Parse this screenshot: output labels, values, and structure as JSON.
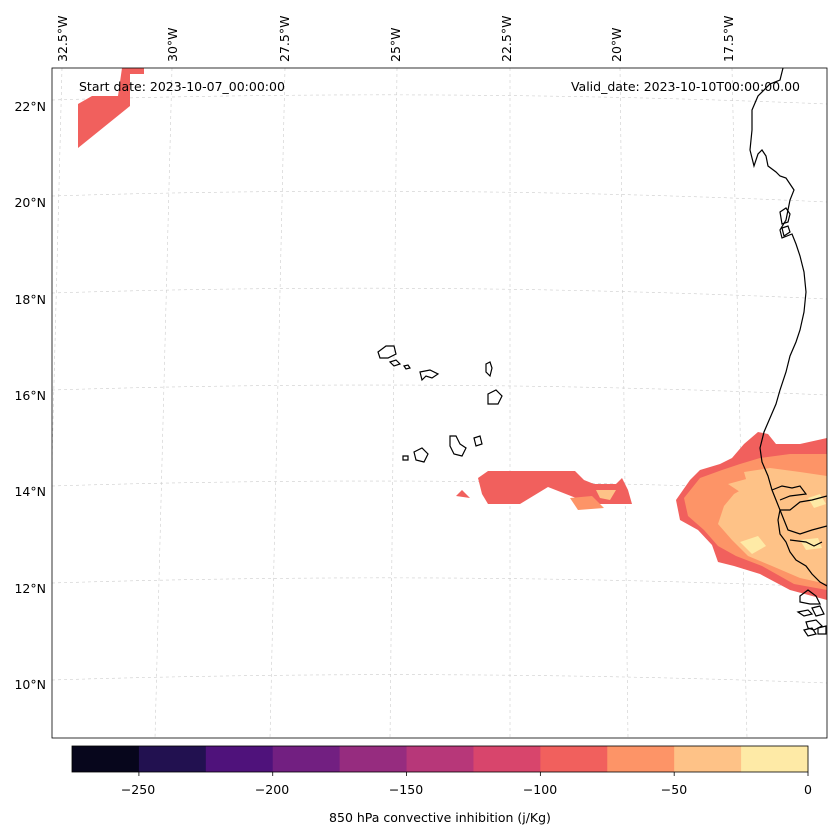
{
  "header": {
    "start_date": "Start date: 2023-10-07_00:00:00",
    "valid_date": "Valid_date: 2023-10-10T00:00:00.00"
  },
  "map": {
    "projection": "lambert-conformal",
    "lon_labels": [
      "32.5°W",
      "30°W",
      "27.5°W",
      "25°W",
      "22.5°W",
      "20°W",
      "17.5°W"
    ],
    "lat_labels": [
      "22°N",
      "20°N",
      "18°N",
      "16°N",
      "14°N",
      "12°N",
      "10°N"
    ],
    "gridlines": true,
    "coastline_color": "#000000"
  },
  "colorbar": {
    "label": "850 hPa convective inhibition (j/Kg)",
    "tick_labels": [
      "−250",
      "−200",
      "−150",
      "−100",
      "−50",
      "0"
    ],
    "levels": [
      -275,
      -250,
      -225,
      -200,
      -175,
      -150,
      -125,
      -100,
      -75,
      -50,
      -25,
      0
    ],
    "colors": [
      "#07061c",
      "#221150",
      "#4f127b",
      "#721f81",
      "#962c7f",
      "#b73779",
      "#d8456c",
      "#f1605d",
      "#fd9467",
      "#fec287",
      "#feeaa6"
    ]
  }
}
